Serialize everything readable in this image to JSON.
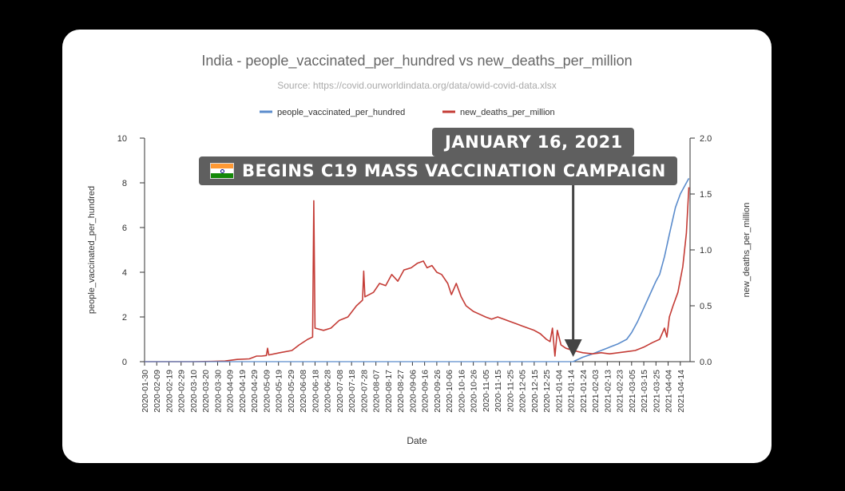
{
  "chart_data": {
    "type": "line",
    "title": "India - people_vaccinated_per_hundred vs new_deaths_per_million",
    "subtitle": "Source: https://covid.ourworldindata.org/data/owid-covid-data.xlsx",
    "xlabel": "Date",
    "ylabel_left": "people_vaccinated_per_hundred",
    "ylabel_right": "new_deaths_per_million",
    "ylim_left": [
      0,
      10
    ],
    "ylim_right": [
      0,
      2.0
    ],
    "yticks_left": [
      "0",
      "2",
      "4",
      "6",
      "8",
      "10"
    ],
    "yticks_right": [
      "0.0",
      "0.5",
      "1.0",
      "1.5",
      "2.0"
    ],
    "xlim": [
      "2020-01-30",
      "2021-04-22"
    ],
    "xticks": [
      "2020-01-30",
      "2020-02-09",
      "2020-02-19",
      "2020-02-29",
      "2020-03-10",
      "2020-03-20",
      "2020-03-30",
      "2020-04-09",
      "2020-04-19",
      "2020-04-29",
      "2020-05-09",
      "2020-05-19",
      "2020-05-29",
      "2020-06-08",
      "2020-06-18",
      "2020-06-28",
      "2020-07-08",
      "2020-07-18",
      "2020-07-28",
      "2020-08-07",
      "2020-08-17",
      "2020-08-27",
      "2020-09-06",
      "2020-09-16",
      "2020-09-26",
      "2020-10-06",
      "2020-10-16",
      "2020-10-26",
      "2020-11-05",
      "2020-11-15",
      "2020-11-25",
      "2020-12-05",
      "2020-12-15",
      "2020-12-25",
      "2021-01-04",
      "2021-01-14",
      "2021-01-24",
      "2021-02-03",
      "2021-02-13",
      "2021-02-23",
      "2021-03-05",
      "2021-03-15",
      "2021-03-25",
      "2021-04-04",
      "2021-04-14"
    ],
    "legend": "top",
    "grid": false,
    "series": [
      {
        "name": "people_vaccinated_per_hundred",
        "color": "#5b8ccc",
        "axis": "left",
        "points": [
          [
            "2021-01-16",
            0.0
          ],
          [
            "2021-01-24",
            0.2
          ],
          [
            "2021-02-01",
            0.35
          ],
          [
            "2021-02-08",
            0.5
          ],
          [
            "2021-02-15",
            0.65
          ],
          [
            "2021-02-22",
            0.8
          ],
          [
            "2021-03-01",
            1.0
          ],
          [
            "2021-03-05",
            1.3
          ],
          [
            "2021-03-10",
            1.8
          ],
          [
            "2021-03-15",
            2.4
          ],
          [
            "2021-03-20",
            3.0
          ],
          [
            "2021-03-25",
            3.6
          ],
          [
            "2021-03-28",
            3.9
          ],
          [
            "2021-04-01",
            4.7
          ],
          [
            "2021-04-05",
            5.7
          ],
          [
            "2021-04-10",
            6.9
          ],
          [
            "2021-04-14",
            7.5
          ],
          [
            "2021-04-18",
            7.9
          ],
          [
            "2021-04-21",
            8.2
          ]
        ]
      },
      {
        "name": "new_deaths_per_million",
        "color": "#c43c36",
        "axis": "right",
        "points": [
          [
            "2020-01-30",
            0.0
          ],
          [
            "2020-03-10",
            0.0
          ],
          [
            "2020-03-25",
            0.002
          ],
          [
            "2020-04-05",
            0.006
          ],
          [
            "2020-04-15",
            0.02
          ],
          [
            "2020-04-25",
            0.025
          ],
          [
            "2020-05-01",
            0.05
          ],
          [
            "2020-05-05",
            0.05
          ],
          [
            "2020-05-09",
            0.055
          ],
          [
            "2020-05-10",
            0.12
          ],
          [
            "2020-05-11",
            0.06
          ],
          [
            "2020-05-20",
            0.08
          ],
          [
            "2020-05-30",
            0.1
          ],
          [
            "2020-06-05",
            0.15
          ],
          [
            "2020-06-12",
            0.2
          ],
          [
            "2020-06-16",
            0.22
          ],
          [
            "2020-06-17",
            1.44
          ],
          [
            "2020-06-18",
            0.3
          ],
          [
            "2020-06-25",
            0.28
          ],
          [
            "2020-07-01",
            0.3
          ],
          [
            "2020-07-08",
            0.37
          ],
          [
            "2020-07-15",
            0.4
          ],
          [
            "2020-07-22",
            0.5
          ],
          [
            "2020-07-27",
            0.55
          ],
          [
            "2020-07-28",
            0.81
          ],
          [
            "2020-07-29",
            0.58
          ],
          [
            "2020-08-05",
            0.62
          ],
          [
            "2020-08-10",
            0.7
          ],
          [
            "2020-08-15",
            0.68
          ],
          [
            "2020-08-20",
            0.78
          ],
          [
            "2020-08-25",
            0.72
          ],
          [
            "2020-08-30",
            0.82
          ],
          [
            "2020-09-05",
            0.84
          ],
          [
            "2020-09-10",
            0.88
          ],
          [
            "2020-09-15",
            0.9
          ],
          [
            "2020-09-18",
            0.84
          ],
          [
            "2020-09-22",
            0.86
          ],
          [
            "2020-09-26",
            0.8
          ],
          [
            "2020-09-30",
            0.78
          ],
          [
            "2020-10-05",
            0.7
          ],
          [
            "2020-10-08",
            0.6
          ],
          [
            "2020-10-12",
            0.7
          ],
          [
            "2020-10-16",
            0.58
          ],
          [
            "2020-10-20",
            0.5
          ],
          [
            "2020-10-26",
            0.45
          ],
          [
            "2020-11-01",
            0.42
          ],
          [
            "2020-11-05",
            0.4
          ],
          [
            "2020-11-10",
            0.38
          ],
          [
            "2020-11-15",
            0.4
          ],
          [
            "2020-11-20",
            0.38
          ],
          [
            "2020-11-25",
            0.36
          ],
          [
            "2020-11-30",
            0.34
          ],
          [
            "2020-12-05",
            0.32
          ],
          [
            "2020-12-10",
            0.3
          ],
          [
            "2020-12-15",
            0.28
          ],
          [
            "2020-12-20",
            0.25
          ],
          [
            "2020-12-25",
            0.2
          ],
          [
            "2020-12-28",
            0.18
          ],
          [
            "2020-12-30",
            0.3
          ],
          [
            "2021-01-01",
            0.05
          ],
          [
            "2021-01-03",
            0.28
          ],
          [
            "2021-01-06",
            0.15
          ],
          [
            "2021-01-10",
            0.12
          ],
          [
            "2021-01-16",
            0.1
          ],
          [
            "2021-01-24",
            0.08
          ],
          [
            "2021-02-01",
            0.07
          ],
          [
            "2021-02-08",
            0.08
          ],
          [
            "2021-02-15",
            0.07
          ],
          [
            "2021-02-22",
            0.08
          ],
          [
            "2021-03-01",
            0.09
          ],
          [
            "2021-03-08",
            0.1
          ],
          [
            "2021-03-15",
            0.13
          ],
          [
            "2021-03-22",
            0.17
          ],
          [
            "2021-03-28",
            0.2
          ],
          [
            "2021-04-01",
            0.3
          ],
          [
            "2021-04-03",
            0.22
          ],
          [
            "2021-04-05",
            0.4
          ],
          [
            "2021-04-08",
            0.5
          ],
          [
            "2021-04-12",
            0.62
          ],
          [
            "2021-04-16",
            0.85
          ],
          [
            "2021-04-19",
            1.15
          ],
          [
            "2021-04-21",
            1.56
          ]
        ]
      }
    ]
  },
  "annotation": {
    "date_text": "JANUARY 16, 2021",
    "caption": "BEGINS C19 MASS VACCINATION CAMPAIGN",
    "flag_icon": "india-flag-icon",
    "arrow_date": "2021-01-16"
  }
}
